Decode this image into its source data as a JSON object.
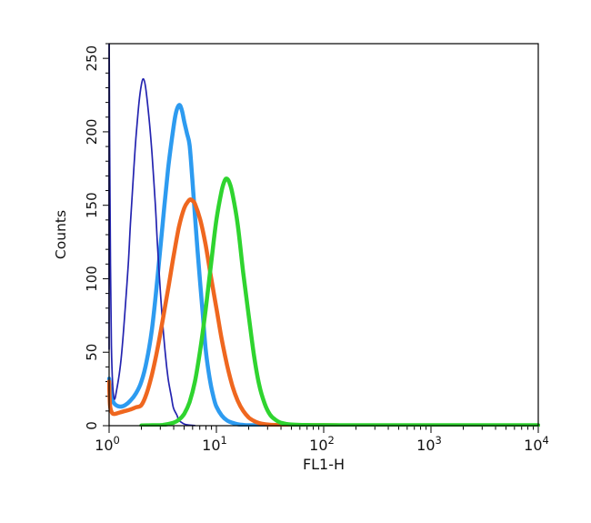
{
  "figure": {
    "background": "#ffffff"
  },
  "chart_data": {
    "type": "line",
    "title": "",
    "xlabel": "FL1-H",
    "ylabel": "Counts",
    "x_scale": "log10",
    "x_decades": [
      0,
      4
    ],
    "xlim": [
      1,
      10000
    ],
    "ylim": [
      0,
      260
    ],
    "grid": false,
    "legend": "none",
    "axis_color": "#000000",
    "background": "#ffffff",
    "x_tick_base": "10",
    "x_tick_exponents": [
      "0",
      "1",
      "2",
      "3",
      "4"
    ],
    "y_tick_values": [
      0,
      50,
      100,
      150,
      200,
      250
    ],
    "y_tick_labels": [
      "0",
      "50",
      "100",
      "150",
      "200",
      "250"
    ],
    "y_minor_step": 10,
    "series": [
      {
        "name": "blue-thick-curve",
        "color": "#2D9BF0",
        "stroke_width": 4.5,
        "peak": {
          "x": 4.6,
          "y": 218
        },
        "points": [
          [
            1.0,
            32
          ],
          [
            1.05,
            20
          ],
          [
            1.12,
            15
          ],
          [
            1.26,
            13
          ],
          [
            1.41,
            14
          ],
          [
            1.58,
            17
          ],
          [
            1.78,
            22
          ],
          [
            2.0,
            30
          ],
          [
            2.24,
            44
          ],
          [
            2.51,
            66
          ],
          [
            2.82,
            100
          ],
          [
            3.16,
            138
          ],
          [
            3.55,
            175
          ],
          [
            3.98,
            203
          ],
          [
            4.17,
            212
          ],
          [
            4.37,
            217
          ],
          [
            4.57,
            218
          ],
          [
            4.79,
            214
          ],
          [
            5.01,
            207
          ],
          [
            5.31,
            199
          ],
          [
            5.62,
            191
          ],
          [
            5.96,
            168
          ],
          [
            6.31,
            143
          ],
          [
            6.68,
            119
          ],
          [
            7.08,
            96
          ],
          [
            7.5,
            74
          ],
          [
            7.94,
            52
          ],
          [
            8.41,
            38
          ],
          [
            8.91,
            27
          ],
          [
            9.44,
            19
          ],
          [
            10,
            13
          ],
          [
            11.2,
            7
          ],
          [
            12.6,
            3.5
          ],
          [
            14.1,
            2
          ],
          [
            15.8,
            1
          ],
          [
            17.8,
            0.5
          ],
          [
            20,
            0.3
          ],
          [
            25,
            0.3
          ],
          [
            31.6,
            0.3
          ]
        ]
      },
      {
        "name": "navy-thin-curve",
        "color": "#2424B0",
        "stroke_width": 1.7,
        "peak": {
          "x": 2.1,
          "y": 236
        },
        "points": [
          [
            1.0,
            52
          ],
          [
            1.0,
            258
          ],
          [
            1.01,
            200
          ],
          [
            1.03,
            110
          ],
          [
            1.05,
            55
          ],
          [
            1.08,
            28
          ],
          [
            1.12,
            18
          ],
          [
            1.18,
            25
          ],
          [
            1.26,
            38
          ],
          [
            1.33,
            55
          ],
          [
            1.41,
            79
          ],
          [
            1.51,
            110
          ],
          [
            1.58,
            137
          ],
          [
            1.7,
            175
          ],
          [
            1.78,
            196
          ],
          [
            1.9,
            220
          ],
          [
            2.0,
            232
          ],
          [
            2.09,
            236
          ],
          [
            2.19,
            230
          ],
          [
            2.35,
            210
          ],
          [
            2.51,
            185
          ],
          [
            2.7,
            150
          ],
          [
            2.82,
            124
          ],
          [
            3.0,
            92
          ],
          [
            3.16,
            69
          ],
          [
            3.35,
            48
          ],
          [
            3.55,
            32
          ],
          [
            3.8,
            20
          ],
          [
            3.98,
            12
          ],
          [
            4.3,
            7
          ],
          [
            4.47,
            3.8
          ],
          [
            5.0,
            1.2
          ],
          [
            5.6,
            0.4
          ],
          [
            6.3,
            0.1
          ]
        ]
      },
      {
        "name": "orange-thick-curve",
        "color": "#EF671F",
        "stroke_width": 4.5,
        "peak": {
          "x": 5.75,
          "y": 154
        },
        "points": [
          [
            1.0,
            30
          ],
          [
            1.02,
            14
          ],
          [
            1.06,
            9
          ],
          [
            1.12,
            8
          ],
          [
            1.26,
            9
          ],
          [
            1.41,
            10
          ],
          [
            1.58,
            11
          ],
          [
            1.78,
            12.5
          ],
          [
            2.0,
            14
          ],
          [
            2.24,
            22
          ],
          [
            2.51,
            35
          ],
          [
            2.82,
            52
          ],
          [
            3.16,
            72
          ],
          [
            3.55,
            93
          ],
          [
            3.98,
            115
          ],
          [
            4.47,
            135
          ],
          [
            5.01,
            148
          ],
          [
            5.5,
            153
          ],
          [
            5.75,
            154
          ],
          [
            6.0,
            153
          ],
          [
            6.31,
            151
          ],
          [
            7.08,
            140
          ],
          [
            7.94,
            123
          ],
          [
            8.91,
            101
          ],
          [
            10,
            80
          ],
          [
            11.2,
            59
          ],
          [
            12.6,
            41
          ],
          [
            14.1,
            27
          ],
          [
            15.8,
            17
          ],
          [
            17.8,
            10
          ],
          [
            20,
            5.6
          ],
          [
            22.4,
            3.2
          ],
          [
            25,
            1.8
          ],
          [
            28.2,
            1.0
          ],
          [
            31.6,
            0.6
          ],
          [
            39.8,
            0.4
          ],
          [
            50,
            0.3
          ],
          [
            70,
            0.3
          ],
          [
            100,
            0.3
          ],
          [
            141,
            0.2
          ]
        ]
      },
      {
        "name": "green-thick-curve",
        "color": "#2FD42F",
        "stroke_width": 4.5,
        "peak": {
          "x": 12.5,
          "y": 168
        },
        "points": [
          [
            2.0,
            0.2
          ],
          [
            2.51,
            0.3
          ],
          [
            3.16,
            0.5
          ],
          [
            3.98,
            2
          ],
          [
            4.47,
            4
          ],
          [
            5.01,
            8
          ],
          [
            5.62,
            16
          ],
          [
            6.31,
            30
          ],
          [
            7.08,
            52
          ],
          [
            7.94,
            79
          ],
          [
            8.91,
            110
          ],
          [
            10,
            140
          ],
          [
            11.2,
            160
          ],
          [
            12.0,
            167
          ],
          [
            12.6,
            168
          ],
          [
            13.3,
            165
          ],
          [
            14.1,
            158
          ],
          [
            15.8,
            137
          ],
          [
            17.8,
            104
          ],
          [
            20,
            75
          ],
          [
            22.4,
            48
          ],
          [
            25,
            28
          ],
          [
            28.2,
            15
          ],
          [
            31.6,
            7.5
          ],
          [
            35.5,
            4
          ],
          [
            39.8,
            2
          ],
          [
            44.7,
            1.2
          ],
          [
            50,
            0.8
          ],
          [
            63,
            0.5
          ],
          [
            79,
            0.4
          ],
          [
            100,
            0.4
          ],
          [
            158,
            0.3
          ],
          [
            251,
            0.3
          ],
          [
            398,
            0.3
          ],
          [
            631,
            0.3
          ],
          [
            1000,
            0.3
          ],
          [
            1585,
            0.3
          ],
          [
            2512,
            0.3
          ],
          [
            3981,
            0.3
          ],
          [
            6310,
            0.3
          ],
          [
            10000,
            0.3
          ]
        ]
      }
    ]
  }
}
